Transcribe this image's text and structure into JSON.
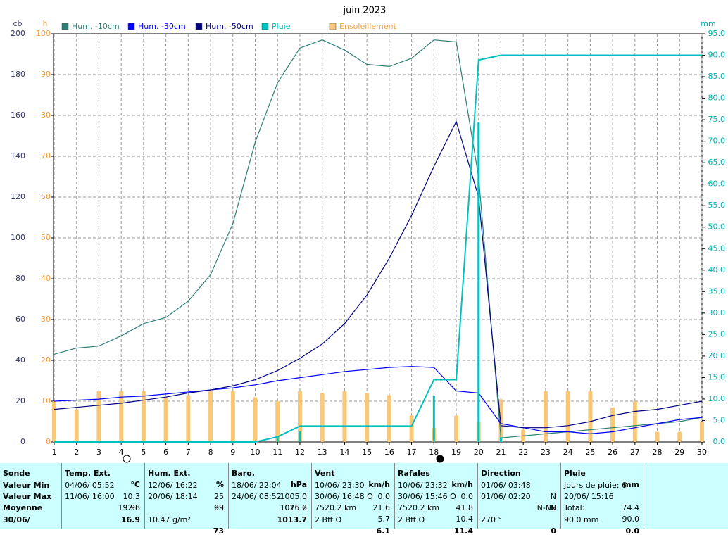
{
  "chart_data": {
    "type": "combo",
    "title": "juin 2023",
    "ylabel": "cb",
    "y2label": "h",
    "y3label": "mm",
    "x": [
      1,
      2,
      3,
      4,
      5,
      6,
      7,
      8,
      9,
      10,
      11,
      12,
      13,
      14,
      15,
      16,
      17,
      18,
      19,
      20,
      21,
      22,
      23,
      24,
      25,
      26,
      27,
      28,
      29,
      30
    ],
    "xlim": [
      1,
      30
    ],
    "xticks": [
      1,
      2,
      3,
      4,
      5,
      6,
      7,
      8,
      9,
      10,
      11,
      12,
      13,
      14,
      15,
      16,
      17,
      18,
      19,
      20,
      21,
      22,
      23,
      24,
      25,
      26,
      27,
      28,
      29,
      30
    ],
    "ylim": [
      0,
      200
    ],
    "yticks": [
      0,
      20,
      40,
      60,
      80,
      100,
      120,
      140,
      160,
      180,
      200
    ],
    "y2lim": [
      0,
      100
    ],
    "y2ticks": [
      0,
      10,
      20,
      30,
      40,
      50,
      60,
      70,
      80,
      90,
      100
    ],
    "y3lim": [
      0,
      95
    ],
    "y3ticks": [
      {
        "value": 0,
        "label": "0.0"
      },
      {
        "value": 5,
        "label": "5.0"
      },
      {
        "value": 10,
        "label": "10.0"
      },
      {
        "value": 15,
        "label": "15.0"
      },
      {
        "value": 20,
        "label": "20.0"
      },
      {
        "value": 25,
        "label": "25.0"
      },
      {
        "value": 30,
        "label": "30.0"
      },
      {
        "value": 35,
        "label": "35.0"
      },
      {
        "value": 40,
        "label": "40.0"
      },
      {
        "value": 45,
        "label": "45.0"
      },
      {
        "value": 50,
        "label": "50.0"
      },
      {
        "value": 55,
        "label": "55.0"
      },
      {
        "value": 60,
        "label": "60.0"
      },
      {
        "value": 65,
        "label": "65.0"
      },
      {
        "value": 70,
        "label": "70.0"
      },
      {
        "value": 75,
        "label": "75.0"
      },
      {
        "value": 80,
        "label": "80.0"
      },
      {
        "value": 85,
        "label": "85.0"
      },
      {
        "value": 90,
        "label": "90.0"
      },
      {
        "value": 95,
        "label": "95.0"
      }
    ],
    "grid": true,
    "series": [
      {
        "name": "Hum. -10cm",
        "type": "line",
        "color": "#2f7f74",
        "axis": "y",
        "values": [
          43,
          46,
          47,
          52,
          58,
          61,
          69,
          82,
          107,
          147,
          176,
          193,
          197,
          192,
          185,
          184,
          188,
          197,
          196,
          130,
          2,
          3,
          4,
          5,
          6,
          7,
          8,
          9,
          10,
          12
        ]
      },
      {
        "name": "Hum. -30cm",
        "type": "line",
        "color": "#0000ff",
        "axis": "y",
        "values": [
          20,
          20.5,
          21,
          22,
          22.5,
          23.5,
          24.5,
          25.5,
          26.5,
          28,
          30,
          31.5,
          33,
          34.5,
          35.5,
          36.5,
          37,
          36.5,
          25,
          24,
          9,
          7,
          5,
          5,
          4,
          5,
          7,
          9,
          11,
          12
        ]
      },
      {
        "name": "Hum. -50cm",
        "type": "line",
        "color": "#000080",
        "axis": "y",
        "values": [
          16,
          17,
          18,
          19,
          20.5,
          22,
          24,
          25.5,
          27.5,
          30.5,
          35,
          41,
          48,
          58,
          72,
          90,
          111,
          135,
          157,
          120,
          8,
          7,
          7,
          8,
          10,
          13,
          15,
          16,
          18,
          20
        ]
      },
      {
        "name": "Pluie",
        "type": "line",
        "color": "#00c0c0",
        "axis": "y3",
        "values": [
          0,
          0,
          0,
          0,
          0,
          0,
          0,
          0,
          0,
          0,
          1.2,
          3.7,
          3.7,
          3.7,
          3.7,
          3.7,
          3.7,
          14.5,
          14.5,
          88.9,
          90,
          90,
          90,
          90,
          90,
          90,
          90,
          90,
          90,
          90
        ],
        "daily_values": [
          0,
          0,
          0,
          0,
          0,
          0,
          0,
          0,
          0,
          0,
          1.2,
          2.5,
          0,
          0,
          0,
          0,
          0,
          10.8,
          0,
          74.4,
          1.1,
          0,
          0,
          0,
          0,
          0,
          0,
          0,
          0,
          0
        ]
      },
      {
        "name": "Ensoleillement",
        "type": "bar",
        "color": "#f8c878",
        "axis": "y2",
        "values": [
          10,
          8,
          12.5,
          12.5,
          12.5,
          11,
          11.5,
          12.5,
          12.5,
          11,
          10,
          12.5,
          12,
          12.5,
          12,
          11.5,
          6.5,
          3.5,
          6.5,
          5,
          10.5,
          3,
          12.5,
          12.5,
          12.5,
          8.5,
          10,
          2.5,
          2.5,
          5
        ]
      }
    ]
  },
  "table": {
    "row_labels": [
      "Sonde",
      "Valeur Min",
      "Valeur Max",
      "Moyenne",
      "30/06/"
    ],
    "columns": [
      {
        "title": "Temp. Ext.",
        "unit": "°C",
        "rows": [
          [
            "04/06/ 05:52",
            "10.3"
          ],
          [
            "11/06/ 16:00",
            "32.8"
          ],
          [
            null,
            "19.96"
          ],
          [
            null,
            "16.9"
          ]
        ]
      },
      {
        "title": "Hum. Ext.",
        "unit": "%",
        "rows": [
          [
            "12/06/ 16:22",
            "25"
          ],
          [
            "20/06/ 18:14",
            "93"
          ],
          [
            null,
            "69"
          ],
          [
            "10.47 g/m³",
            "73"
          ]
        ]
      },
      {
        "title": "Baro.",
        "unit": "hPa",
        "rows": [
          [
            "18/06/ 22:04",
            "1005.0"
          ],
          [
            "24/06/ 08:52",
            "1025.2"
          ],
          [
            null,
            "1016.6"
          ],
          [
            null,
            "1013.7"
          ]
        ]
      },
      {
        "title": "Vent",
        "unit": "km/h",
        "rows": [
          [
            "10/06/ 23:30",
            "0.0"
          ],
          [
            "30/06/ 16:48 O",
            "21.6"
          ],
          [
            "7520.2 km",
            "5.7"
          ],
          [
            "2 Bft O",
            "6.1"
          ]
        ]
      },
      {
        "title": "Rafales",
        "unit": "km/h",
        "rows": [
          [
            "10/06/ 23:32",
            "0.0"
          ],
          [
            "30/06/ 15:46 O",
            "41.8"
          ],
          [
            "7520.2 km",
            "10.4"
          ],
          [
            "2 Bft O",
            "11.4"
          ]
        ]
      },
      {
        "title": "Direction",
        "rows": [
          [
            "01/06/ 03:48",
            "N"
          ],
          [
            "01/06/ 02:20",
            "N"
          ],
          [
            null,
            "N-NE"
          ],
          [
            "270 °",
            "0"
          ]
        ]
      },
      {
        "title": "Pluie",
        "unit": "mm",
        "rows": [
          [
            "Jours de pluie: 6",
            null
          ],
          [
            "20/06/ 15:16",
            "74.4"
          ],
          [
            "Total:",
            "90.0"
          ],
          [
            "90.0 mm",
            "0.0"
          ]
        ]
      }
    ]
  }
}
